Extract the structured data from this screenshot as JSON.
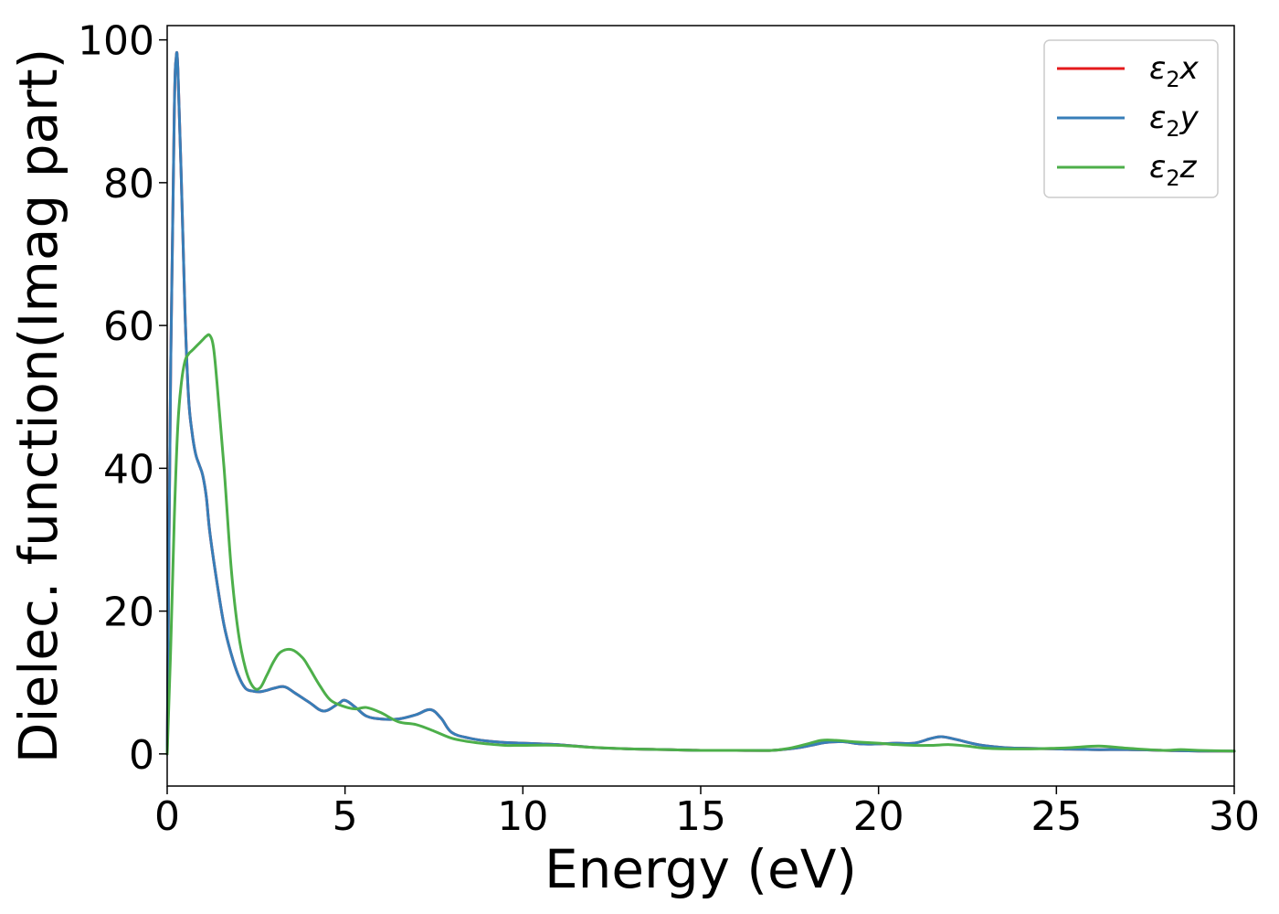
{
  "chart_data": {
    "type": "line",
    "title": "",
    "xlabel": "Energy (eV)",
    "ylabel": "Dielec. function(Imag part)",
    "xlim": [
      0,
      30
    ],
    "ylim": [
      -4.5,
      102
    ],
    "xticks": [
      0,
      5,
      10,
      15,
      20,
      25,
      30
    ],
    "yticks": [
      0,
      20,
      40,
      60,
      80,
      100
    ],
    "grid": false,
    "legend_position": "top-right",
    "series": [
      {
        "name": "ε2x",
        "legend_base": "ε",
        "legend_sub": "2",
        "legend_suffix": "x",
        "color": "#e41a1c",
        "x": [
          0,
          0.1,
          0.2,
          0.25,
          0.3,
          0.4,
          0.5,
          0.6,
          0.7,
          0.8,
          0.9,
          1.0,
          1.1,
          1.2,
          1.4,
          1.6,
          1.8,
          2.0,
          2.2,
          2.4,
          2.6,
          2.8,
          3.0,
          3.3,
          3.6,
          4.0,
          4.4,
          4.8,
          5.0,
          5.3,
          5.6,
          6.0,
          6.5,
          7.0,
          7.4,
          7.7,
          8.0,
          8.5,
          9.0,
          9.5,
          10.0,
          10.5,
          11.0,
          12.0,
          13.0,
          14.0,
          15.0,
          16.0,
          17.0,
          17.8,
          18.5,
          19.0,
          19.5,
          20.0,
          20.5,
          21.0,
          21.5,
          21.8,
          22.2,
          22.8,
          23.5,
          24.0,
          25.0,
          26.0,
          27.0,
          28.0,
          29.0,
          30.0
        ],
        "values": [
          0,
          55,
          90,
          97.3,
          96,
          80,
          62,
          50,
          45,
          42,
          40.5,
          39,
          36,
          31,
          24,
          18,
          14,
          11,
          9.2,
          8.8,
          8.7,
          8.9,
          9.2,
          9.4,
          8.5,
          7.2,
          6.0,
          7.0,
          7.5,
          6.5,
          5.3,
          4.9,
          4.9,
          5.5,
          6.2,
          5.0,
          3.0,
          2.2,
          1.8,
          1.6,
          1.5,
          1.4,
          1.3,
          0.9,
          0.7,
          0.6,
          0.5,
          0.5,
          0.5,
          0.9,
          1.6,
          1.7,
          1.4,
          1.4,
          1.5,
          1.5,
          2.2,
          2.4,
          2.0,
          1.3,
          0.9,
          0.8,
          0.7,
          0.6,
          0.6,
          0.5,
          0.4,
          0.4
        ]
      },
      {
        "name": "ε2y",
        "legend_base": "ε",
        "legend_sub": "2",
        "legend_suffix": "y",
        "color": "#377eb8",
        "x": [
          0,
          0.1,
          0.2,
          0.25,
          0.3,
          0.4,
          0.5,
          0.6,
          0.7,
          0.8,
          0.9,
          1.0,
          1.1,
          1.2,
          1.4,
          1.6,
          1.8,
          2.0,
          2.2,
          2.4,
          2.6,
          2.8,
          3.0,
          3.3,
          3.6,
          4.0,
          4.4,
          4.8,
          5.0,
          5.3,
          5.6,
          6.0,
          6.5,
          7.0,
          7.4,
          7.7,
          8.0,
          8.5,
          9.0,
          9.5,
          10.0,
          10.5,
          11.0,
          12.0,
          13.0,
          14.0,
          15.0,
          16.0,
          17.0,
          17.8,
          18.5,
          19.0,
          19.5,
          20.0,
          20.5,
          21.0,
          21.5,
          21.8,
          22.2,
          22.8,
          23.5,
          24.0,
          25.0,
          26.0,
          27.0,
          28.0,
          29.0,
          30.0
        ],
        "values": [
          0,
          55,
          90,
          97.3,
          96,
          80,
          62,
          50,
          45,
          42,
          40.5,
          39,
          36,
          31,
          24,
          18,
          14,
          11,
          9.2,
          8.8,
          8.7,
          8.9,
          9.2,
          9.4,
          8.5,
          7.2,
          6.0,
          7.0,
          7.5,
          6.5,
          5.3,
          4.9,
          4.9,
          5.5,
          6.2,
          5.0,
          3.0,
          2.2,
          1.8,
          1.6,
          1.5,
          1.4,
          1.3,
          0.9,
          0.7,
          0.6,
          0.5,
          0.5,
          0.5,
          0.9,
          1.6,
          1.7,
          1.4,
          1.4,
          1.5,
          1.5,
          2.2,
          2.4,
          2.0,
          1.3,
          0.9,
          0.8,
          0.7,
          0.6,
          0.6,
          0.5,
          0.4,
          0.4
        ]
      },
      {
        "name": "ε2z",
        "legend_base": "ε",
        "legend_sub": "2",
        "legend_suffix": "z",
        "color": "#4daf4a",
        "x": [
          0,
          0.1,
          0.2,
          0.3,
          0.4,
          0.5,
          0.6,
          0.7,
          0.8,
          0.9,
          1.0,
          1.1,
          1.2,
          1.3,
          1.4,
          1.6,
          1.8,
          2.0,
          2.2,
          2.4,
          2.6,
          2.8,
          3.0,
          3.2,
          3.5,
          3.8,
          4.0,
          4.3,
          4.6,
          5.0,
          5.3,
          5.6,
          6.0,
          6.5,
          7.0,
          7.5,
          8.0,
          8.5,
          9.0,
          9.5,
          10.0,
          11.0,
          12.0,
          13.0,
          14.0,
          15.0,
          16.0,
          17.0,
          17.5,
          18.0,
          18.4,
          18.8,
          19.3,
          20.0,
          20.5,
          21.0,
          21.5,
          22.0,
          22.5,
          23.0,
          24.0,
          25.0,
          25.5,
          26.2,
          27.0,
          28.0,
          28.5,
          29.0,
          30.0
        ],
        "values": [
          0,
          15,
          33,
          46,
          52,
          55,
          56,
          56.5,
          57,
          57.5,
          58,
          58.5,
          58.6,
          57,
          52,
          40,
          26,
          17,
          12,
          9.5,
          9.2,
          11,
          13,
          14.3,
          14.6,
          13.5,
          12,
          9.5,
          7.5,
          6.6,
          6.3,
          6.5,
          5.8,
          4.5,
          4.1,
          3.2,
          2.2,
          1.7,
          1.4,
          1.2,
          1.2,
          1.2,
          0.9,
          0.7,
          0.6,
          0.5,
          0.5,
          0.5,
          0.8,
          1.4,
          1.9,
          1.9,
          1.7,
          1.5,
          1.3,
          1.2,
          1.2,
          1.3,
          1.1,
          0.8,
          0.7,
          0.8,
          0.9,
          1.1,
          0.8,
          0.5,
          0.6,
          0.5,
          0.4
        ]
      }
    ]
  }
}
